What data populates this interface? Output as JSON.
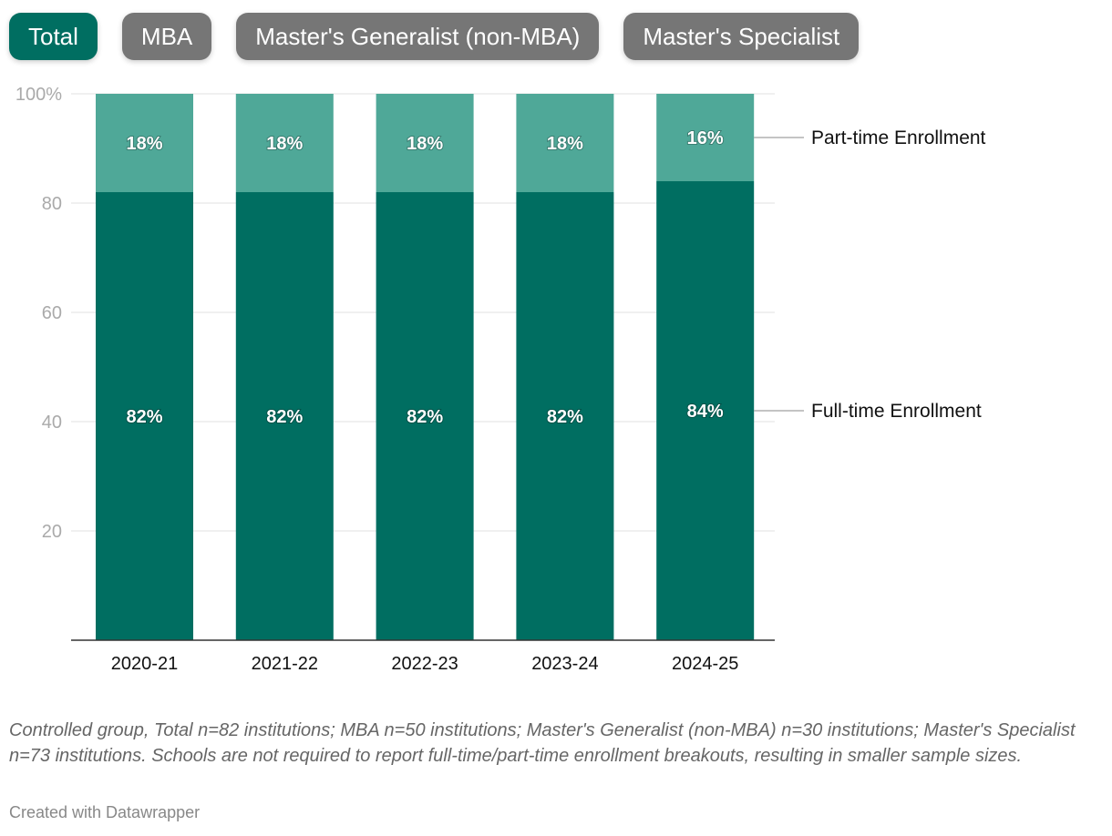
{
  "tabs": [
    {
      "label": "Total",
      "active": true
    },
    {
      "label": "MBA",
      "active": false
    },
    {
      "label": "Master's Generalist (non-MBA)",
      "active": false
    },
    {
      "label": "Master's Specialist",
      "active": false
    }
  ],
  "chart_data": {
    "type": "bar",
    "stacked": true,
    "categories": [
      "2020-21",
      "2021-22",
      "2022-23",
      "2023-24",
      "2024-25"
    ],
    "series": [
      {
        "name": "Full-time Enrollment",
        "values": [
          82,
          82,
          82,
          82,
          84
        ],
        "labels": [
          "82%",
          "82%",
          "82%",
          "82%",
          "84%"
        ],
        "color": "#006e61"
      },
      {
        "name": "Part-time Enrollment",
        "values": [
          18,
          18,
          18,
          18,
          16
        ],
        "labels": [
          "18%",
          "18%",
          "18%",
          "18%",
          "16%"
        ],
        "color": "#4fa898"
      }
    ],
    "ylim": [
      0,
      100
    ],
    "yticks": [
      {
        "v": 100,
        "label": "100%"
      },
      {
        "v": 80,
        "label": "80"
      },
      {
        "v": 60,
        "label": "60"
      },
      {
        "v": 40,
        "label": "40"
      },
      {
        "v": 20,
        "label": "20"
      }
    ],
    "grid": true,
    "legend": "direct labels right"
  },
  "notes": "Controlled group, Total n=82 institutions; MBA n=50 institutions; Master's Generalist (non-MBA) n=30 institutions; Master's Specialist n=73 institutions. Schools are not required to report full-time/part-time enrollment breakouts, resulting in smaller sample sizes.",
  "credit": "Created with Datawrapper"
}
